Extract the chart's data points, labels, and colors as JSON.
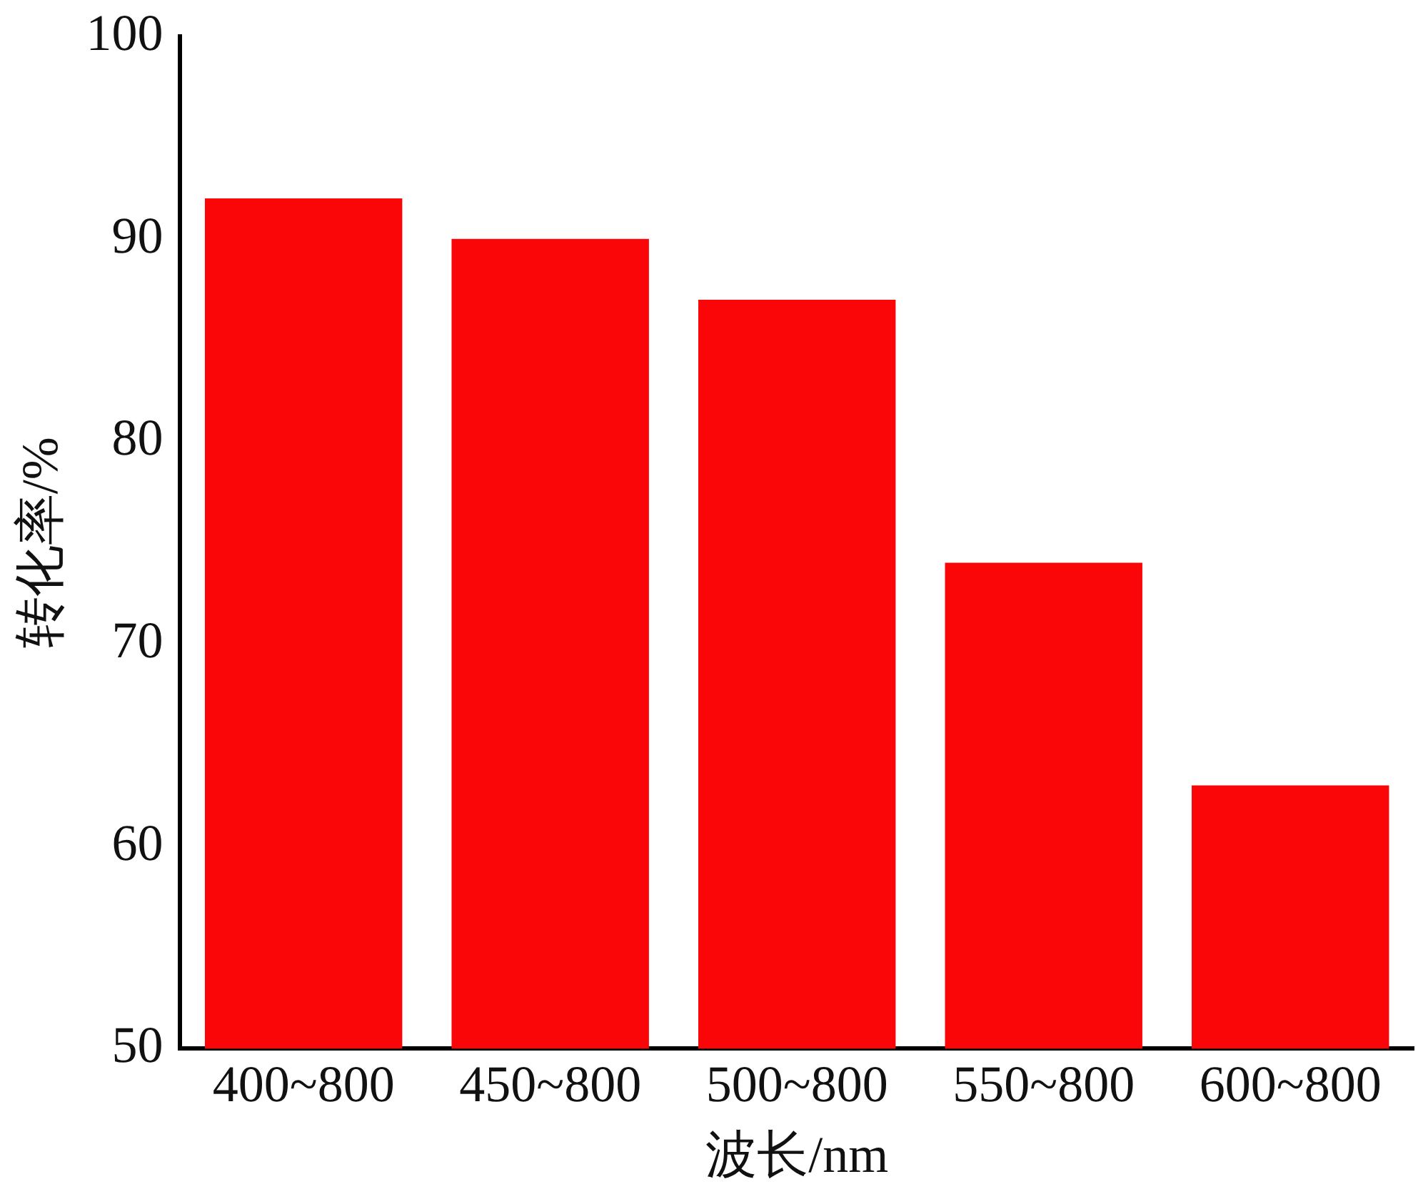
{
  "chart_data": {
    "type": "bar",
    "xlabel": "波长/nm",
    "ylabel": "转化率/%",
    "categories": [
      "400~800",
      "450~800",
      "500~800",
      "550~800",
      "600~800"
    ],
    "values": [
      92,
      90,
      87,
      74,
      63
    ],
    "color": "#fa0508",
    "ylim": [
      50,
      100
    ],
    "yticks": [
      50,
      60,
      70,
      80,
      90,
      100
    ],
    "grid": false,
    "legend": false
  }
}
